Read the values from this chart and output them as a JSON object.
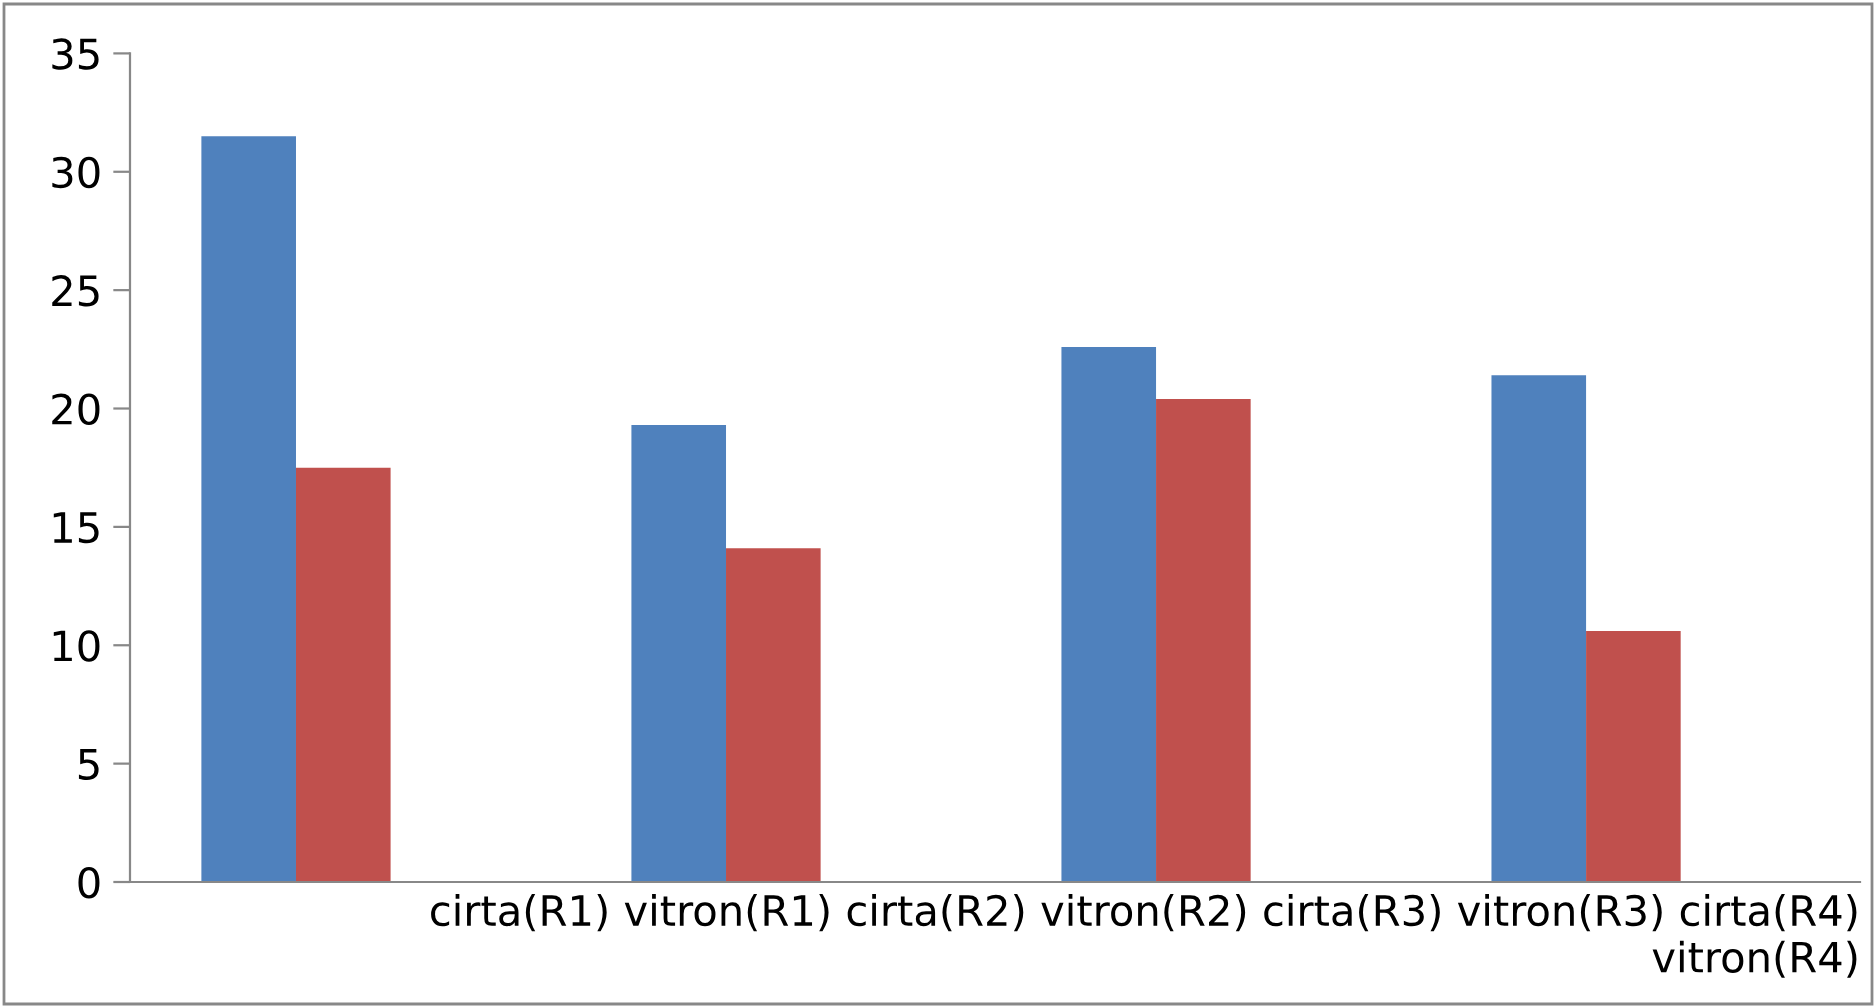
{
  "chart_data": {
    "type": "bar",
    "categories": [
      null,
      null,
      null,
      null
    ],
    "series": [
      {
        "color": "#4f81bd",
        "values": [
          31.5,
          19.3,
          22.6,
          21.4
        ]
      },
      {
        "color": "#c0504d",
        "values": [
          17.5,
          14.1,
          20.4,
          10.6
        ]
      }
    ],
    "ylim": [
      0,
      35
    ],
    "yticks": [
      0,
      5,
      10,
      15,
      20,
      25,
      30,
      35
    ],
    "grid": false,
    "legend": false,
    "annotations": [
      "cirta(R1) vitron(R1) cirta(R2) vitron(R2) cirta(R3) vitron(R3) cirta(R4)\nvitron(R4)"
    ]
  }
}
